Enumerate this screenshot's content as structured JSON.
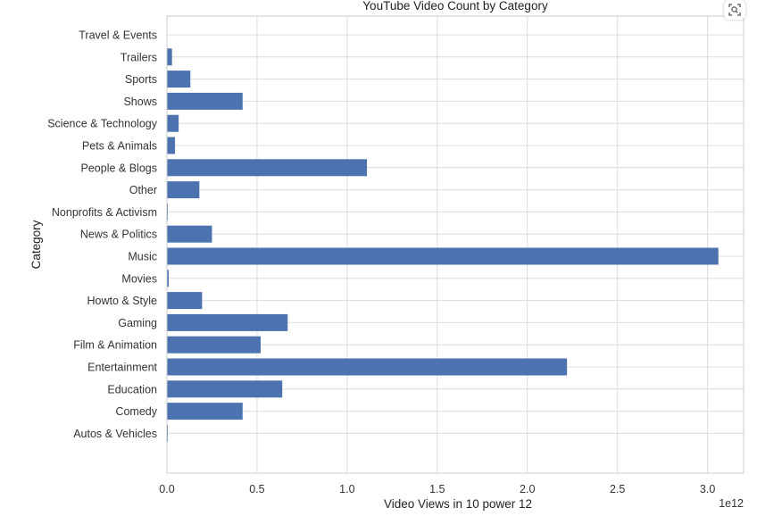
{
  "chart_data": {
    "type": "bar",
    "orientation": "horizontal",
    "title": "YouTube Video Count by Category",
    "xlabel": "Video Views in 10 power 12",
    "ylabel": "Category",
    "x_offset_label": "1e12",
    "xlim": [
      0,
      3.2
    ],
    "x_ticks": [
      "0.0",
      "0.5",
      "1.0",
      "1.5",
      "2.0",
      "2.5",
      "3.0"
    ],
    "grid": true,
    "color": "#4c72b0",
    "categories": [
      "Autos & Vehicles",
      "Comedy",
      "Education",
      "Entertainment",
      "Film & Animation",
      "Gaming",
      "Howto & Style",
      "Movies",
      "Music",
      "News & Politics",
      "Nonprofits & Activism",
      "Other",
      "People & Blogs",
      "Pets & Animals",
      "Science & Technology",
      "Shows",
      "Sports",
      "Trailers",
      "Travel & Events"
    ],
    "values": [
      0.005,
      0.42,
      0.64,
      2.22,
      0.52,
      0.67,
      0.195,
      0.01,
      3.06,
      0.25,
      0.005,
      0.18,
      1.11,
      0.045,
      0.065,
      0.42,
      0.13,
      0.028,
      0.0
    ]
  },
  "toolbar": {
    "zoom_icon": "zoom-icon"
  }
}
